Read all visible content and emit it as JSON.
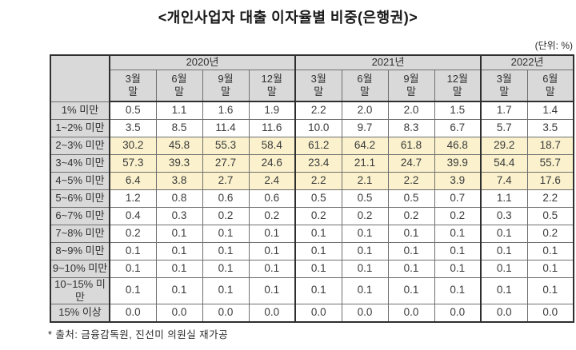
{
  "title": "<개인사업자 대출 이자율별 비중(은행권)>",
  "unit_note": "(단위: %)",
  "footnote": "* 출처: 금융감독원, 진선미 의원실 재가공",
  "colors": {
    "header_bg": "#d9d9d9",
    "highlight_bg": "#fbf2cd",
    "grid_line": "#6f6f6f",
    "strong_line": "#2f2f2f",
    "text": "#303030"
  },
  "chart_data": {
    "type": "table",
    "title": "<개인사업자 대출 이자율별 비중(은행권)>",
    "unit": "(단위: %)",
    "year_groups": [
      {
        "label": "2020년",
        "span": 4
      },
      {
        "label": "2021년",
        "span": 4
      },
      {
        "label": "2022년",
        "span": 2
      }
    ],
    "month_columns": [
      "3월",
      "6월",
      "9월",
      "12월",
      "3월",
      "6월",
      "9월",
      "12월",
      "3월",
      "6월"
    ],
    "month_suffix": "말",
    "rows": [
      {
        "label": "1% 미만",
        "highlight": false,
        "values": [
          "0.5",
          "1.1",
          "1.6",
          "1.9",
          "2.2",
          "2.0",
          "2.0",
          "1.5",
          "1.7",
          "1.4"
        ]
      },
      {
        "label": "1~2% 미만",
        "highlight": false,
        "values": [
          "3.5",
          "8.5",
          "11.4",
          "11.6",
          "10.0",
          "9.7",
          "8.3",
          "6.7",
          "5.7",
          "3.5"
        ]
      },
      {
        "label": "2~3% 미만",
        "highlight": true,
        "values": [
          "30.2",
          "45.8",
          "55.3",
          "58.4",
          "61.2",
          "64.2",
          "61.8",
          "46.8",
          "29.2",
          "18.7"
        ]
      },
      {
        "label": "3~4% 미만",
        "highlight": true,
        "values": [
          "57.3",
          "39.3",
          "27.7",
          "24.6",
          "23.4",
          "21.1",
          "24.7",
          "39.9",
          "54.4",
          "55.7"
        ]
      },
      {
        "label": "4~5% 미만",
        "highlight": true,
        "values": [
          "6.4",
          "3.8",
          "2.7",
          "2.4",
          "2.2",
          "2.1",
          "2.2",
          "3.9",
          "7.4",
          "17.6"
        ]
      },
      {
        "label": "5~6% 미만",
        "highlight": false,
        "values": [
          "1.2",
          "0.8",
          "0.6",
          "0.6",
          "0.5",
          "0.5",
          "0.5",
          "0.7",
          "1.1",
          "2.2"
        ]
      },
      {
        "label": "6~7% 미만",
        "highlight": false,
        "values": [
          "0.4",
          "0.3",
          "0.2",
          "0.2",
          "0.2",
          "0.2",
          "0.2",
          "0.2",
          "0.3",
          "0.5"
        ]
      },
      {
        "label": "7~8% 미만",
        "highlight": false,
        "values": [
          "0.2",
          "0.1",
          "0.1",
          "0.1",
          "0.1",
          "0.1",
          "0.1",
          "0.1",
          "0.1",
          "0.2"
        ]
      },
      {
        "label": "8~9% 미만",
        "highlight": false,
        "values": [
          "0.1",
          "0.1",
          "0.1",
          "0.1",
          "0.1",
          "0.1",
          "0.1",
          "0.1",
          "0.1",
          "0.1"
        ]
      },
      {
        "label": "9~10% 미만",
        "highlight": false,
        "values": [
          "0.1",
          "0.1",
          "0.1",
          "0.1",
          "0.1",
          "0.1",
          "0.1",
          "0.1",
          "0.1",
          "0.1"
        ]
      },
      {
        "label": "10~15% 미만",
        "highlight": false,
        "values": [
          "0.1",
          "0.1",
          "0.1",
          "0.1",
          "0.1",
          "0.1",
          "0.1",
          "0.1",
          "0.1",
          "0.1"
        ]
      },
      {
        "label": "15% 이상",
        "highlight": false,
        "values": [
          "0.0",
          "0.0",
          "0.0",
          "0.0",
          "0.0",
          "0.0",
          "0.0",
          "0.0",
          "0.0",
          "0.0"
        ]
      }
    ]
  }
}
